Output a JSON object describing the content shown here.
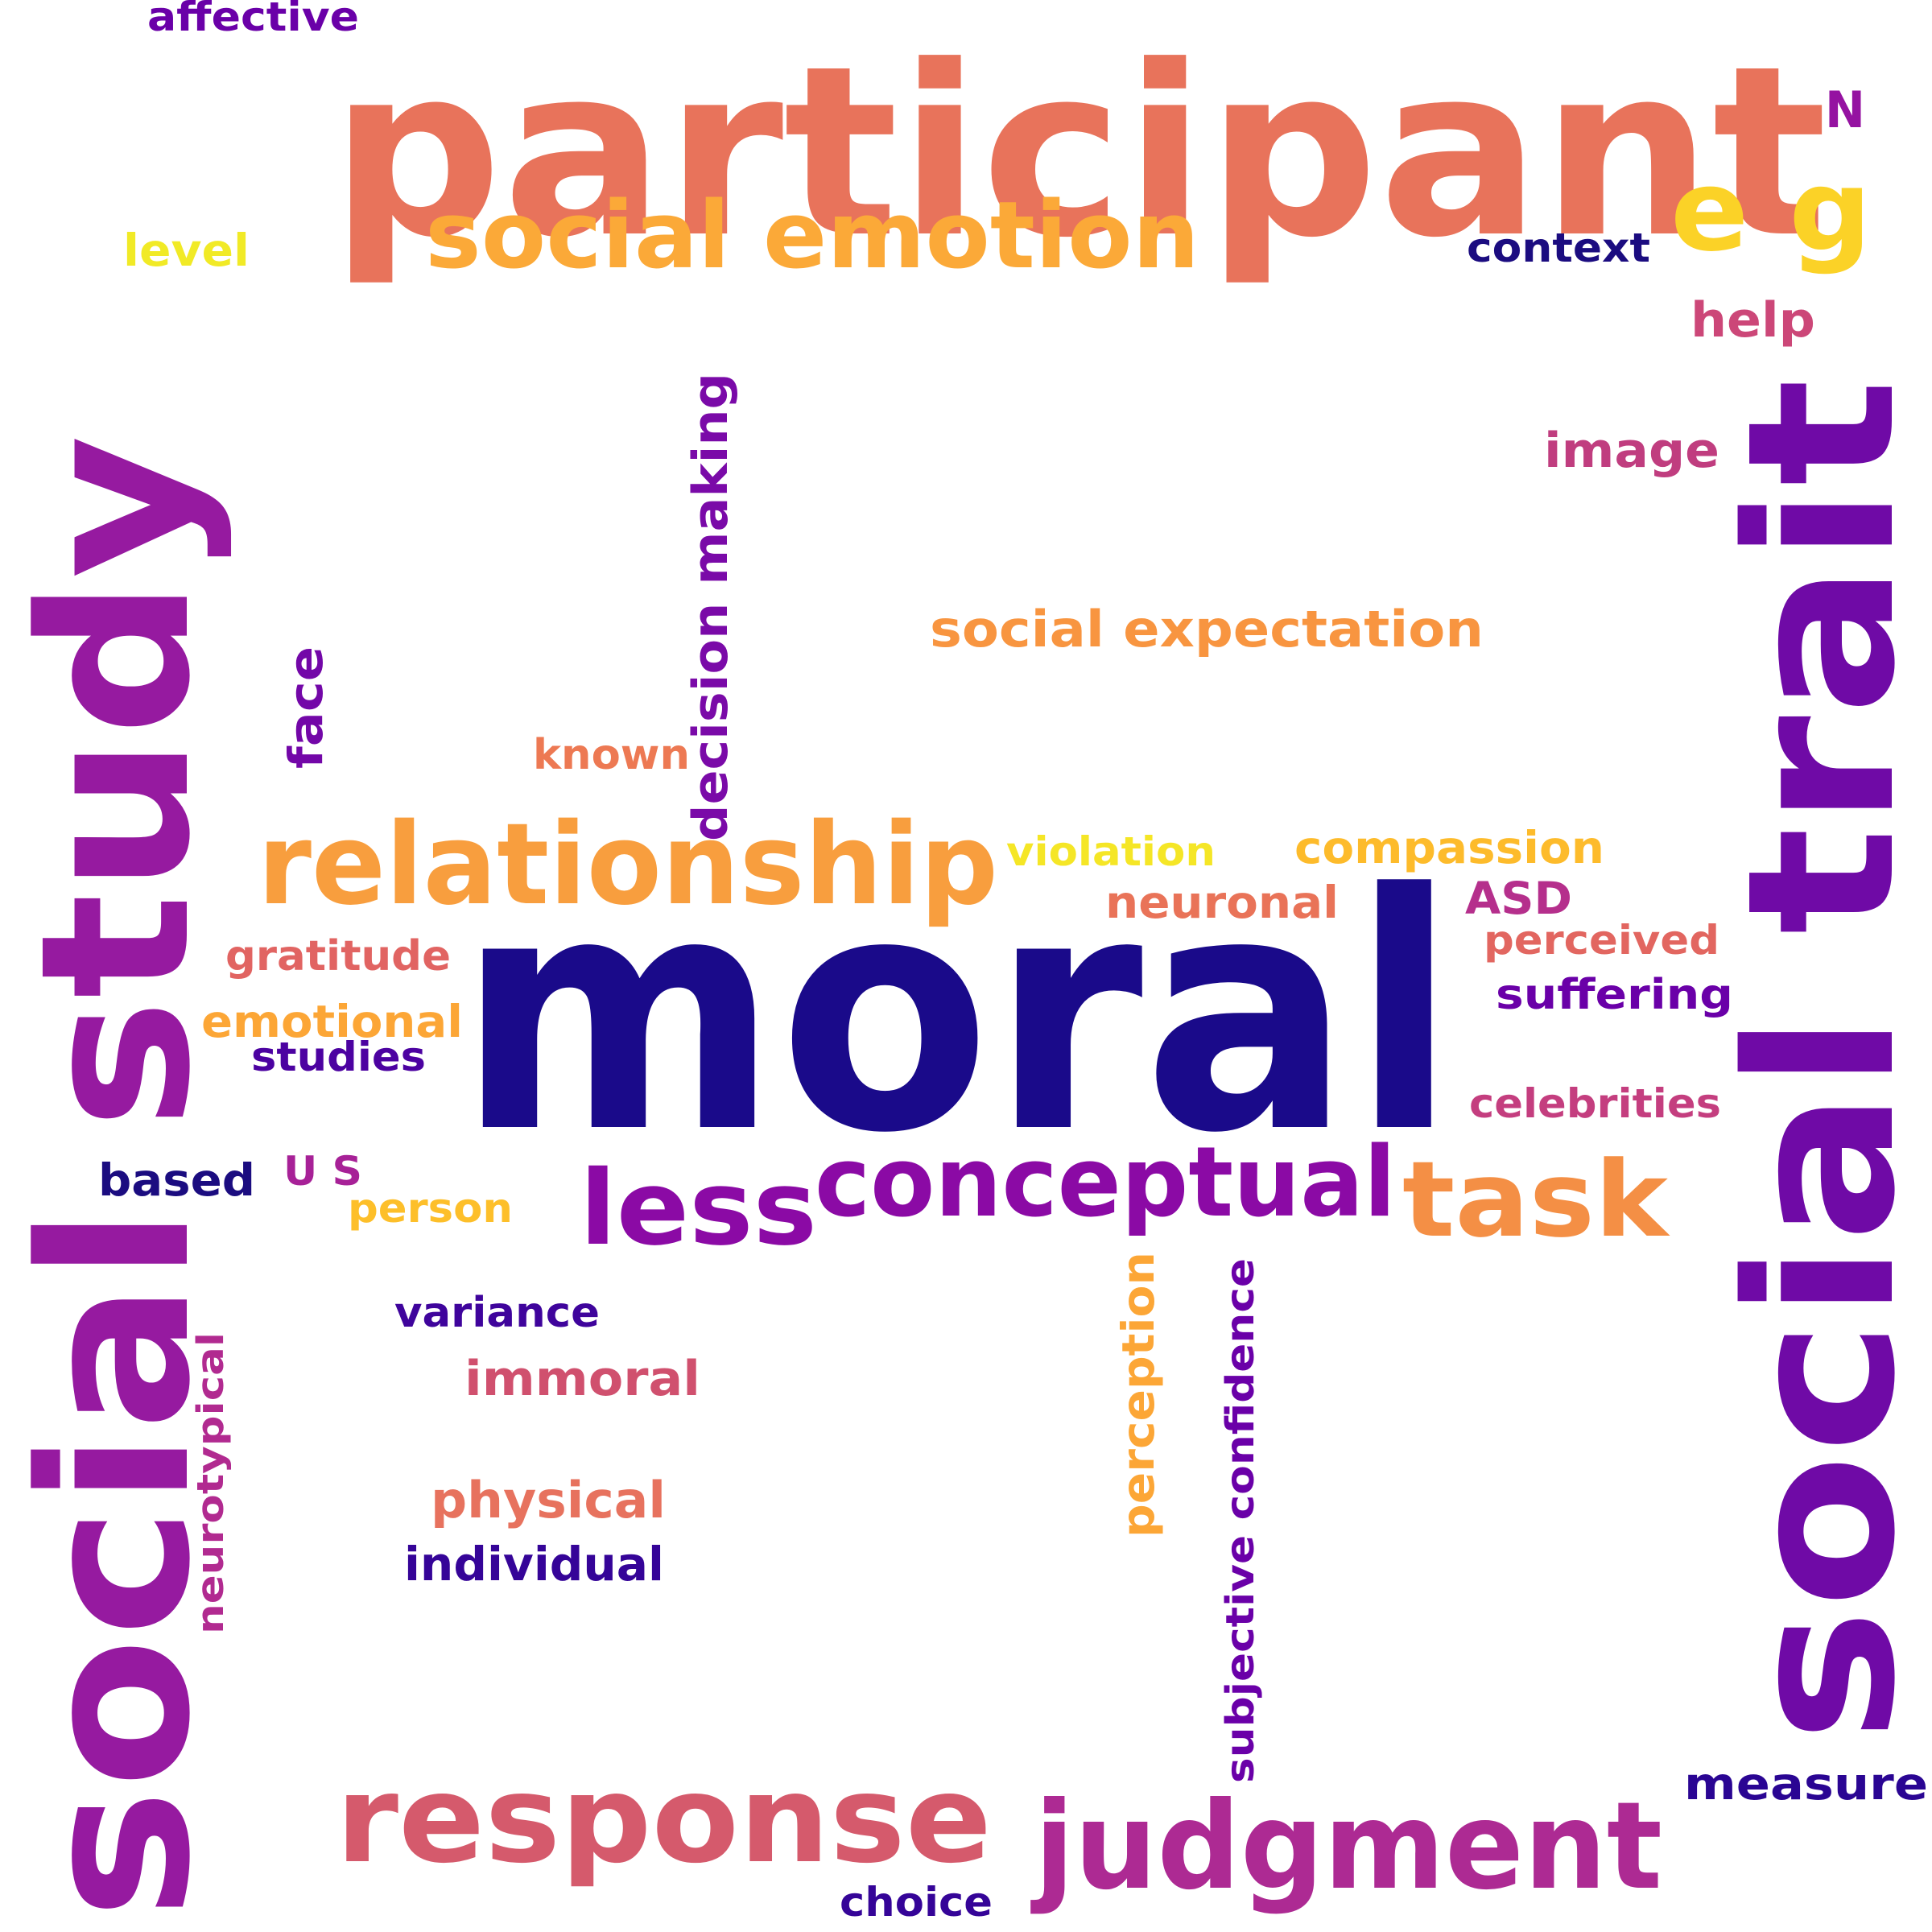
{
  "words": [
    {
      "text": "participant",
      "color": "#e8735b"
    },
    {
      "text": "moral",
      "color": "#1a0a8a"
    },
    {
      "text": "social trait",
      "color": "#6f0aa6"
    },
    {
      "text": "social study",
      "color": "#961aa0"
    },
    {
      "text": "social emotion",
      "color": "#fba938"
    },
    {
      "text": "e g",
      "color": "#fbd227"
    },
    {
      "text": "relationship",
      "color": "#f89e3e"
    },
    {
      "text": "response",
      "color": "#d55a6c"
    },
    {
      "text": "judgment",
      "color": "#ad2a93"
    },
    {
      "text": "conceptual",
      "color": "#8b0aa5"
    },
    {
      "text": "less",
      "color": "#8b0aa5"
    },
    {
      "text": "task",
      "color": "#f48f45"
    },
    {
      "text": "social expectation",
      "color": "#f89540"
    },
    {
      "text": "decision making",
      "color": "#7a0aa8"
    },
    {
      "text": "affective",
      "color": "#6a00a8"
    },
    {
      "text": "N",
      "color": "#9512a1"
    },
    {
      "text": "level",
      "color": "#f1ea26"
    },
    {
      "text": "context",
      "color": "#1b0c80"
    },
    {
      "text": "help",
      "color": "#cc4778"
    },
    {
      "text": "image",
      "color": "#c03d7f"
    },
    {
      "text": "face",
      "color": "#7307a8"
    },
    {
      "text": "known",
      "color": "#ed7953"
    },
    {
      "text": "violation",
      "color": "#f5e626"
    },
    {
      "text": "compassion",
      "color": "#fdbb2b"
    },
    {
      "text": "neuronal",
      "color": "#e97358"
    },
    {
      "text": "ASD",
      "color": "#b52f8c"
    },
    {
      "text": "perceived",
      "color": "#e26660"
    },
    {
      "text": "suffering",
      "color": "#6a00a8"
    },
    {
      "text": "celebrities",
      "color": "#c43e7f"
    },
    {
      "text": "gratitude",
      "color": "#e16462"
    },
    {
      "text": "emotional",
      "color": "#fca636"
    },
    {
      "text": "studies",
      "color": "#4c02a1"
    },
    {
      "text": "based",
      "color": "#1b0c80"
    },
    {
      "text": "U S",
      "color": "#a72197"
    },
    {
      "text": "person",
      "color": "#fdbf2a"
    },
    {
      "text": "variance",
      "color": "#3f049c"
    },
    {
      "text": "immoral",
      "color": "#d0506e"
    },
    {
      "text": "neurotypical",
      "color": "#b12a90"
    },
    {
      "text": "perception",
      "color": "#fca636"
    },
    {
      "text": "subjective confidence",
      "color": "#6a00a8"
    },
    {
      "text": "physical",
      "color": "#e7725e"
    },
    {
      "text": "individual",
      "color": "#350498"
    },
    {
      "text": "measure",
      "color": "#2a0593"
    },
    {
      "text": "choice",
      "color": "#350498"
    }
  ]
}
